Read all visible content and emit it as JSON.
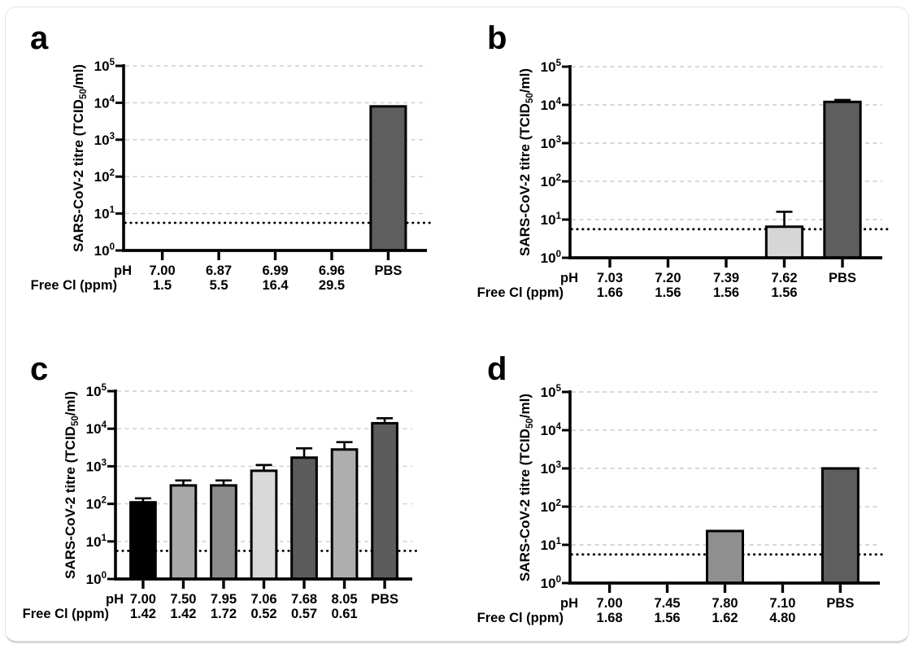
{
  "figure": {
    "background_color": "#ffffff",
    "axis_color": "#000000",
    "gridline_color": "#cccccc",
    "detection_line_color": "#000000"
  },
  "chart_data": [
    {
      "panel_label": "a",
      "type": "bar",
      "y_axis": {
        "title_pre": "SARS-CoV-2 titre (TCID",
        "title_sub": "50",
        "title_post": "/ml)",
        "scale": "log10",
        "tick_base": "10",
        "tick_exponents": [
          0,
          1,
          2,
          3,
          4,
          5
        ],
        "range": [
          1,
          100000
        ],
        "grid": "dashed horizontal at each decade"
      },
      "x_axis": {
        "row1_header": "pH",
        "row2_header": "Free Cl (ppm)",
        "categories": [
          "7.00",
          "6.87",
          "6.99",
          "6.96",
          "PBS"
        ],
        "row2_values": [
          "1.5",
          "5.5",
          "16.4",
          "29.5",
          ""
        ]
      },
      "detection_limit": 5.6,
      "values": [
        null,
        null,
        null,
        null,
        8000
      ],
      "error_tops": [
        null,
        null,
        null,
        null,
        null
      ],
      "bar_colors": [
        null,
        null,
        null,
        null,
        "#5e5e5e"
      ]
    },
    {
      "panel_label": "b",
      "type": "bar",
      "y_axis": {
        "title_pre": "SARS-CoV-2 titre (TCID",
        "title_sub": "50",
        "title_post": "/ml)",
        "scale": "log10",
        "tick_base": "10",
        "tick_exponents": [
          0,
          1,
          2,
          3,
          4,
          5
        ],
        "range": [
          1,
          100000
        ],
        "grid": "dashed horizontal at each decade"
      },
      "x_axis": {
        "row1_header": "pH",
        "row2_header": "Free Cl (ppm)",
        "categories": [
          "7.03",
          "7.20",
          "7.39",
          "7.62",
          "PBS"
        ],
        "row2_values": [
          "1.66",
          "1.56",
          "1.56",
          "1.56",
          ""
        ]
      },
      "detection_limit": 5.6,
      "values": [
        null,
        null,
        null,
        6.5,
        12000
      ],
      "error_tops": [
        null,
        null,
        null,
        16,
        13500
      ],
      "bar_colors": [
        null,
        null,
        null,
        "#d6d6d6",
        "#5e5e5e"
      ]
    },
    {
      "panel_label": "c",
      "type": "bar",
      "y_axis": {
        "title_pre": "SARS-CoV-2 titre (TCID",
        "title_sub": "50",
        "title_post": "/ml)",
        "scale": "log10",
        "tick_base": "10",
        "tick_exponents": [
          0,
          1,
          2,
          3,
          4,
          5
        ],
        "range": [
          1,
          100000
        ],
        "grid": "dashed horizontal at each decade"
      },
      "x_axis": {
        "row1_header": "pH",
        "row2_header": "Free Cl (ppm)",
        "categories": [
          "7.00",
          "7.50",
          "7.95",
          "7.06",
          "7.68",
          "8.05",
          "PBS"
        ],
        "row2_values": [
          "1.42",
          "1.42",
          "1.72",
          "0.52",
          "0.57",
          "0.61",
          ""
        ]
      },
      "detection_limit": 5.6,
      "values": [
        110,
        310,
        310,
        760,
        1700,
        2800,
        14000
      ],
      "error_tops": [
        140,
        420,
        420,
        1080,
        3000,
        4400,
        19000
      ],
      "bar_colors": [
        "#000000",
        "#a8a8a8",
        "#8b8b8b",
        "#d9d9d9",
        "#5c5c5c",
        "#aeaeae",
        "#5c5c5c"
      ]
    },
    {
      "panel_label": "d",
      "type": "bar",
      "y_axis": {
        "title_pre": "SARS-CoV-2 titre (TCID",
        "title_sub": "50",
        "title_post": "/ml)",
        "scale": "log10",
        "tick_base": "10",
        "tick_exponents": [
          0,
          1,
          2,
          3,
          4,
          5
        ],
        "range": [
          1,
          100000
        ],
        "grid": "dashed horizontal at each decade"
      },
      "x_axis": {
        "row1_header": "pH",
        "row2_header": "Free Cl (ppm)",
        "categories": [
          "7.00",
          "7.45",
          "7.80",
          "7.10",
          "PBS"
        ],
        "row2_values": [
          "1.68",
          "1.56",
          "1.62",
          "4.80",
          ""
        ]
      },
      "detection_limit": 5.6,
      "values": [
        null,
        null,
        23,
        null,
        1000
      ],
      "error_tops": [
        null,
        null,
        null,
        null,
        null
      ],
      "bar_colors": [
        null,
        null,
        "#8f8f8f",
        null,
        "#5e5e5e"
      ]
    }
  ]
}
